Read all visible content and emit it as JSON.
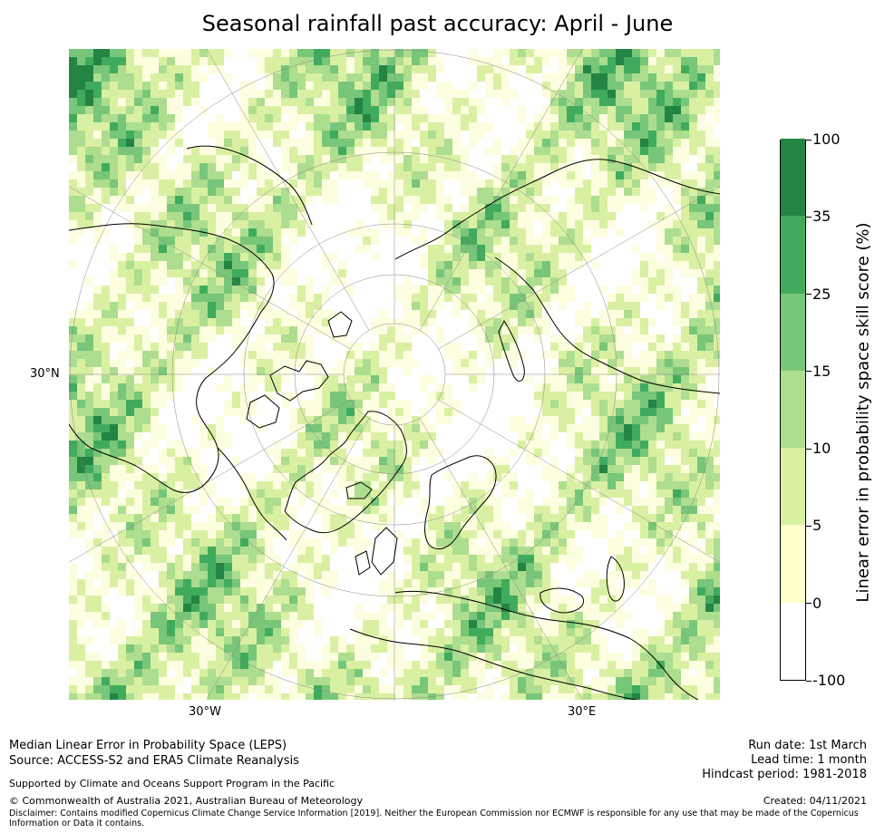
{
  "title": "Seasonal rainfall past accuracy: April - June",
  "map": {
    "projection": "north-polar-stereographic",
    "lon_labels": [
      "30°W",
      "30°E"
    ],
    "lat_labels": [
      "30°N"
    ]
  },
  "colorbar": {
    "title": "Linear error in probability space skill score (%)",
    "levels": [
      "-100",
      "0",
      "5",
      "10",
      "15",
      "25",
      "35",
      "100"
    ],
    "colors": [
      "#ffffff",
      "#ffffcc",
      "#d9f0a3",
      "#addd8e",
      "#78c679",
      "#41ab5d",
      "#238443"
    ]
  },
  "footer": {
    "left_line1": "Median Linear Error in Probability Space (LEPS)",
    "left_line2": "Source: ACCESS-S2 and ERA5 Climate Reanalysis",
    "support": "Supported by Climate and Oceans Support Program in the Pacific",
    "copyright": "© Commonwealth of Australia 2021, Australian Bureau of Meteorology",
    "disclaimer_line1": "Disclaimer: Contains modified Copernicus Climate Change Service Information [2019]. Neither the European Commission nor ECMWF is responsible for any use that may be made of the Copernicus",
    "disclaimer_line2": "Information or Data it contains.",
    "run_date": "Run date: 1st March",
    "lead_time": "Lead time: 1 month",
    "hindcast": "Hindcast period: 1981-2018",
    "created": "Created: 04/11/2021"
  }
}
